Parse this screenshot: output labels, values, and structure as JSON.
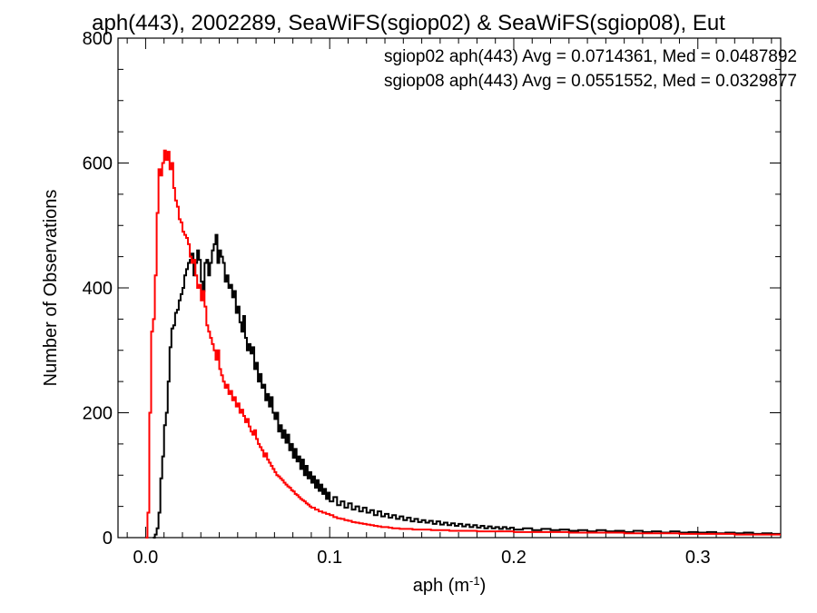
{
  "chart_data": {
    "type": "histogram",
    "title": "aph(443), 2002289, SeaWiFS(sgiop02) & SeaWiFS(sgiop08), Eut",
    "xlabel": "aph (m",
    "xlabel_sup": "-1",
    "xlabel_suffix": ")",
    "ylabel": "Number of Observations",
    "xlim": [
      -0.015,
      0.345
    ],
    "ylim": [
      0,
      800
    ],
    "x_ticks": [
      0.0,
      0.1,
      0.2,
      0.3
    ],
    "x_tick_labels": [
      "0.0",
      "0.1",
      "0.2",
      "0.3"
    ],
    "y_ticks": [
      0,
      200,
      400,
      600,
      800
    ],
    "y_tick_labels": [
      "0",
      "200",
      "400",
      "600",
      "800"
    ],
    "grid": false,
    "bin_width": 0.001,
    "series": [
      {
        "name": "sgiop02",
        "color": "#000000",
        "stats_label": "sgiop02 aph(443) Avg = 0.0714361, Med = 0.0487892",
        "points": [
          [
            0.004,
            0
          ],
          [
            0.005,
            5
          ],
          [
            0.006,
            15
          ],
          [
            0.007,
            40
          ],
          [
            0.008,
            95
          ],
          [
            0.009,
            130
          ],
          [
            0.01,
            180
          ],
          [
            0.011,
            200
          ],
          [
            0.012,
            250
          ],
          [
            0.013,
            305
          ],
          [
            0.014,
            335
          ],
          [
            0.015,
            340
          ],
          [
            0.016,
            360
          ],
          [
            0.017,
            365
          ],
          [
            0.018,
            380
          ],
          [
            0.019,
            390
          ],
          [
            0.02,
            400
          ],
          [
            0.021,
            420
          ],
          [
            0.022,
            430
          ],
          [
            0.023,
            440
          ],
          [
            0.024,
            445
          ],
          [
            0.025,
            455
          ],
          [
            0.026,
            420
          ],
          [
            0.027,
            440
          ],
          [
            0.028,
            460
          ],
          [
            0.029,
            445
          ],
          [
            0.03,
            410
          ],
          [
            0.031,
            395
          ],
          [
            0.032,
            440
          ],
          [
            0.033,
            445
          ],
          [
            0.034,
            420
          ],
          [
            0.035,
            440
          ],
          [
            0.036,
            460
          ],
          [
            0.037,
            470
          ],
          [
            0.038,
            485
          ],
          [
            0.039,
            440
          ],
          [
            0.04,
            460
          ],
          [
            0.041,
            450
          ],
          [
            0.042,
            440
          ],
          [
            0.043,
            410
          ],
          [
            0.044,
            420
          ],
          [
            0.045,
            400
          ],
          [
            0.046,
            405
          ],
          [
            0.047,
            385
          ],
          [
            0.048,
            395
          ],
          [
            0.049,
            360
          ],
          [
            0.05,
            370
          ],
          [
            0.051,
            345
          ],
          [
            0.052,
            330
          ],
          [
            0.053,
            355
          ],
          [
            0.054,
            320
          ],
          [
            0.055,
            300
          ],
          [
            0.056,
            310
          ],
          [
            0.057,
            295
          ],
          [
            0.058,
            305
          ],
          [
            0.059,
            270
          ],
          [
            0.06,
            280
          ],
          [
            0.061,
            250
          ],
          [
            0.062,
            262
          ],
          [
            0.063,
            240
          ],
          [
            0.064,
            245
          ],
          [
            0.065,
            220
          ],
          [
            0.066,
            230
          ],
          [
            0.067,
            210
          ],
          [
            0.068,
            225
          ],
          [
            0.069,
            200
          ],
          [
            0.07,
            190
          ],
          [
            0.071,
            200
          ],
          [
            0.072,
            170
          ],
          [
            0.073,
            180
          ],
          [
            0.074,
            160
          ],
          [
            0.075,
            172
          ],
          [
            0.076,
            152
          ],
          [
            0.077,
            165
          ],
          [
            0.078,
            140
          ],
          [
            0.079,
            150
          ],
          [
            0.08,
            128
          ],
          [
            0.081,
            142
          ],
          [
            0.082,
            122
          ],
          [
            0.083,
            130
          ],
          [
            0.084,
            110
          ],
          [
            0.085,
            125
          ],
          [
            0.086,
            100
          ],
          [
            0.087,
            115
          ],
          [
            0.088,
            95
          ],
          [
            0.089,
            105
          ],
          [
            0.09,
            88
          ],
          [
            0.091,
            98
          ],
          [
            0.092,
            80
          ],
          [
            0.093,
            92
          ],
          [
            0.094,
            75
          ],
          [
            0.095,
            85
          ],
          [
            0.096,
            70
          ],
          [
            0.097,
            78
          ],
          [
            0.098,
            62
          ],
          [
            0.099,
            72
          ],
          [
            0.1,
            58
          ],
          [
            0.102,
            65
          ],
          [
            0.104,
            52
          ],
          [
            0.106,
            58
          ],
          [
            0.108,
            48
          ],
          [
            0.11,
            55
          ],
          [
            0.112,
            45
          ],
          [
            0.114,
            50
          ],
          [
            0.116,
            42
          ],
          [
            0.118,
            48
          ],
          [
            0.12,
            40
          ],
          [
            0.122,
            44
          ],
          [
            0.124,
            36
          ],
          [
            0.126,
            42
          ],
          [
            0.128,
            34
          ],
          [
            0.13,
            38
          ],
          [
            0.132,
            32
          ],
          [
            0.134,
            36
          ],
          [
            0.136,
            30
          ],
          [
            0.138,
            34
          ],
          [
            0.14,
            28
          ],
          [
            0.142,
            32
          ],
          [
            0.144,
            26
          ],
          [
            0.146,
            30
          ],
          [
            0.148,
            25
          ],
          [
            0.15,
            28
          ],
          [
            0.152,
            24
          ],
          [
            0.154,
            27
          ],
          [
            0.156,
            22
          ],
          [
            0.158,
            26
          ],
          [
            0.16,
            21
          ],
          [
            0.162,
            24
          ],
          [
            0.164,
            20
          ],
          [
            0.166,
            23
          ],
          [
            0.168,
            19
          ],
          [
            0.17,
            22
          ],
          [
            0.172,
            18
          ],
          [
            0.174,
            21
          ],
          [
            0.176,
            17
          ],
          [
            0.178,
            20
          ],
          [
            0.18,
            16
          ],
          [
            0.182,
            19
          ],
          [
            0.184,
            15
          ],
          [
            0.186,
            18
          ],
          [
            0.188,
            15
          ],
          [
            0.19,
            17
          ],
          [
            0.192,
            14
          ],
          [
            0.194,
            17
          ],
          [
            0.196,
            14
          ],
          [
            0.198,
            16
          ],
          [
            0.2,
            13
          ],
          [
            0.205,
            15
          ],
          [
            0.21,
            12
          ],
          [
            0.215,
            14
          ],
          [
            0.22,
            12
          ],
          [
            0.225,
            13
          ],
          [
            0.23,
            11
          ],
          [
            0.235,
            12
          ],
          [
            0.24,
            10
          ],
          [
            0.245,
            12
          ],
          [
            0.25,
            10
          ],
          [
            0.255,
            11
          ],
          [
            0.26,
            9
          ],
          [
            0.265,
            11
          ],
          [
            0.27,
            9
          ],
          [
            0.275,
            10
          ],
          [
            0.28,
            8
          ],
          [
            0.285,
            10
          ],
          [
            0.29,
            8
          ],
          [
            0.295,
            9
          ],
          [
            0.3,
            8
          ],
          [
            0.305,
            9
          ],
          [
            0.31,
            7
          ],
          [
            0.315,
            8
          ],
          [
            0.32,
            7
          ],
          [
            0.325,
            8
          ],
          [
            0.33,
            6
          ],
          [
            0.335,
            7
          ],
          [
            0.34,
            6
          ],
          [
            0.345,
            6
          ]
        ]
      },
      {
        "name": "sgiop08",
        "color": "#ff0000",
        "stats_label": "sgiop08 aph(443) Avg = 0.0551552, Med = 0.0329877",
        "points": [
          [
            0.0,
            0
          ],
          [
            0.001,
            40
          ],
          [
            0.002,
            200
          ],
          [
            0.003,
            330
          ],
          [
            0.004,
            350
          ],
          [
            0.005,
            420
          ],
          [
            0.006,
            520
          ],
          [
            0.007,
            590
          ],
          [
            0.008,
            580
          ],
          [
            0.009,
            600
          ],
          [
            0.01,
            620
          ],
          [
            0.011,
            605
          ],
          [
            0.012,
            618
          ],
          [
            0.013,
            590
          ],
          [
            0.014,
            600
          ],
          [
            0.015,
            560
          ],
          [
            0.016,
            540
          ],
          [
            0.017,
            530
          ],
          [
            0.018,
            510
          ],
          [
            0.019,
            505
          ],
          [
            0.02,
            490
          ],
          [
            0.021,
            485
          ],
          [
            0.022,
            480
          ],
          [
            0.023,
            470
          ],
          [
            0.024,
            450
          ],
          [
            0.025,
            440
          ],
          [
            0.026,
            445
          ],
          [
            0.027,
            420
          ],
          [
            0.028,
            400
          ],
          [
            0.029,
            405
          ],
          [
            0.03,
            380
          ],
          [
            0.031,
            395
          ],
          [
            0.032,
            370
          ],
          [
            0.033,
            340
          ],
          [
            0.034,
            330
          ],
          [
            0.035,
            320
          ],
          [
            0.036,
            310
          ],
          [
            0.037,
            300
          ],
          [
            0.038,
            285
          ],
          [
            0.039,
            300
          ],
          [
            0.04,
            270
          ],
          [
            0.041,
            260
          ],
          [
            0.042,
            250
          ],
          [
            0.043,
            240
          ],
          [
            0.044,
            245
          ],
          [
            0.045,
            230
          ],
          [
            0.046,
            235
          ],
          [
            0.047,
            220
          ],
          [
            0.048,
            225
          ],
          [
            0.049,
            210
          ],
          [
            0.05,
            215
          ],
          [
            0.051,
            200
          ],
          [
            0.052,
            205
          ],
          [
            0.053,
            195
          ],
          [
            0.054,
            185
          ],
          [
            0.055,
            190
          ],
          [
            0.056,
            178
          ],
          [
            0.057,
            170
          ],
          [
            0.058,
            165
          ],
          [
            0.059,
            172
          ],
          [
            0.06,
            158
          ],
          [
            0.061,
            150
          ],
          [
            0.062,
            145
          ],
          [
            0.063,
            140
          ],
          [
            0.064,
            130
          ],
          [
            0.065,
            135
          ],
          [
            0.066,
            125
          ],
          [
            0.067,
            120
          ],
          [
            0.068,
            115
          ],
          [
            0.069,
            110
          ],
          [
            0.07,
            105
          ],
          [
            0.071,
            100
          ],
          [
            0.072,
            98
          ],
          [
            0.073,
            95
          ],
          [
            0.074,
            92
          ],
          [
            0.075,
            88
          ],
          [
            0.076,
            85
          ],
          [
            0.077,
            82
          ],
          [
            0.078,
            80
          ],
          [
            0.079,
            76
          ],
          [
            0.08,
            74
          ],
          [
            0.081,
            70
          ],
          [
            0.082,
            68
          ],
          [
            0.083,
            65
          ],
          [
            0.084,
            62
          ],
          [
            0.085,
            60
          ],
          [
            0.086,
            58
          ],
          [
            0.087,
            55
          ],
          [
            0.088,
            53
          ],
          [
            0.089,
            50
          ],
          [
            0.09,
            48
          ],
          [
            0.092,
            45
          ],
          [
            0.094,
            42
          ],
          [
            0.096,
            40
          ],
          [
            0.098,
            38
          ],
          [
            0.1,
            36
          ],
          [
            0.102,
            33
          ],
          [
            0.104,
            31
          ],
          [
            0.106,
            30
          ],
          [
            0.108,
            28
          ],
          [
            0.11,
            27
          ],
          [
            0.112,
            25
          ],
          [
            0.114,
            24
          ],
          [
            0.116,
            23
          ],
          [
            0.118,
            22
          ],
          [
            0.12,
            21
          ],
          [
            0.122,
            20
          ],
          [
            0.124,
            19
          ],
          [
            0.126,
            18
          ],
          [
            0.128,
            17
          ],
          [
            0.13,
            17
          ],
          [
            0.132,
            16
          ],
          [
            0.134,
            15
          ],
          [
            0.136,
            15
          ],
          [
            0.138,
            14
          ],
          [
            0.14,
            14
          ],
          [
            0.145,
            13
          ],
          [
            0.15,
            13
          ],
          [
            0.155,
            12
          ],
          [
            0.16,
            12
          ],
          [
            0.165,
            11
          ],
          [
            0.17,
            11
          ],
          [
            0.175,
            11
          ],
          [
            0.18,
            10
          ],
          [
            0.185,
            10
          ],
          [
            0.19,
            10
          ],
          [
            0.195,
            10
          ],
          [
            0.2,
            9
          ],
          [
            0.205,
            9
          ],
          [
            0.21,
            9
          ],
          [
            0.22,
            9
          ],
          [
            0.23,
            8
          ],
          [
            0.24,
            8
          ],
          [
            0.25,
            8
          ],
          [
            0.26,
            7
          ],
          [
            0.27,
            7
          ],
          [
            0.28,
            7
          ],
          [
            0.29,
            6
          ],
          [
            0.3,
            6
          ],
          [
            0.31,
            6
          ],
          [
            0.32,
            5
          ],
          [
            0.33,
            5
          ],
          [
            0.34,
            5
          ],
          [
            0.345,
            5
          ]
        ]
      }
    ]
  }
}
